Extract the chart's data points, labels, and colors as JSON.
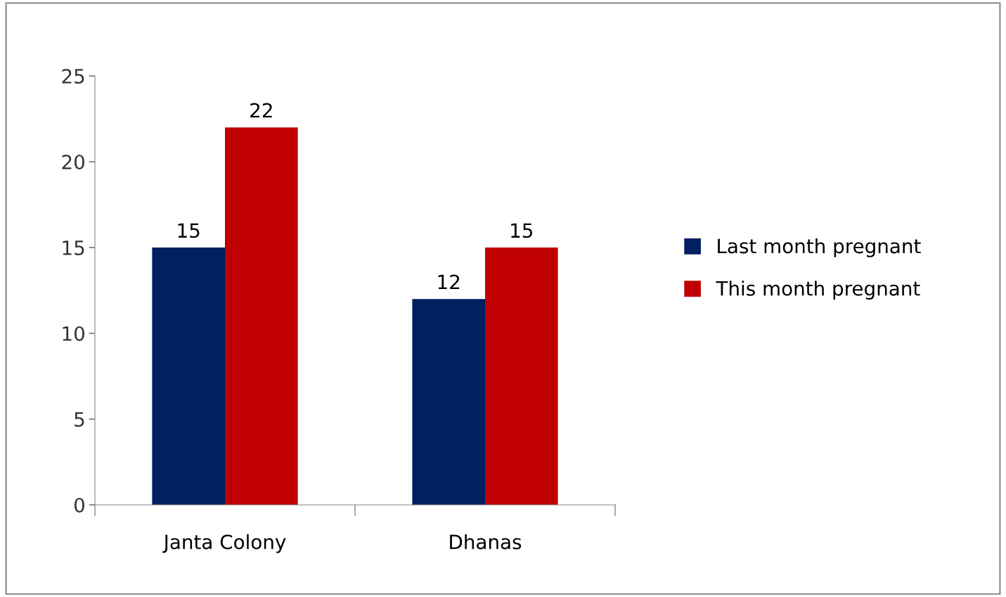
{
  "chart_data": {
    "type": "bar",
    "categories": [
      "Janta Colony",
      "Dhanas"
    ],
    "series": [
      {
        "name": "Last month pregnant",
        "color": "#002060",
        "values": [
          15,
          12
        ]
      },
      {
        "name": "This month pregnant",
        "color": "#c00000",
        "values": [
          22,
          15
        ]
      }
    ],
    "ylim": [
      0,
      25
    ],
    "yticks": [
      0,
      5,
      10,
      15,
      20,
      25
    ],
    "data_labels": true,
    "legend": "right",
    "grid": false
  }
}
